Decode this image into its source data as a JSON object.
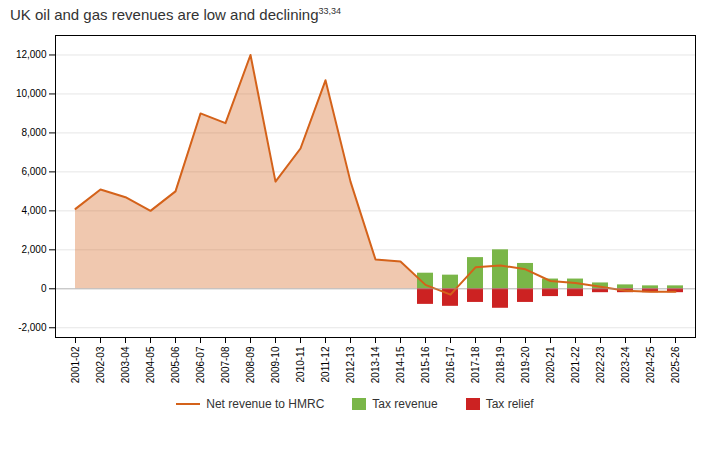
{
  "chart_data": {
    "type": "line",
    "title": "UK oil and gas revenues are low and declining",
    "title_superscript": "33,34",
    "categories": [
      "2001-02",
      "2002-03",
      "2003-04",
      "2004-05",
      "2005-06",
      "2006-07",
      "2007-08",
      "2008-09",
      "2009-10",
      "2010-11",
      "2011-12",
      "2012-13",
      "2013-14",
      "2014-15",
      "2015-16",
      "2016-17",
      "2017-18",
      "2018-19",
      "2019-20",
      "2020-21",
      "2021-22",
      "2022-23",
      "2023-24",
      "2024-25",
      "2025-26"
    ],
    "series": [
      {
        "name": "Net revenue to HMRC",
        "type": "line",
        "color": "#d4621a",
        "values": [
          4100,
          5100,
          4700,
          4000,
          5000,
          9000,
          8500,
          12000,
          5500,
          7200,
          10700,
          5500,
          1500,
          1400,
          200,
          -300,
          1100,
          1200,
          1000,
          400,
          300,
          100,
          -100,
          -150,
          -150
        ]
      },
      {
        "name": "Tax revenue",
        "type": "bar",
        "color": "#7ab648",
        "values": [
          null,
          null,
          null,
          null,
          null,
          null,
          null,
          null,
          null,
          null,
          null,
          null,
          null,
          null,
          800,
          700,
          1600,
          2000,
          1300,
          500,
          500,
          300,
          200,
          150,
          150
        ]
      },
      {
        "name": "Tax relief",
        "type": "bar",
        "color": "#cc2222",
        "values": [
          null,
          null,
          null,
          null,
          null,
          null,
          null,
          null,
          null,
          null,
          null,
          null,
          null,
          null,
          -800,
          -900,
          -700,
          -1000,
          -700,
          -400,
          -400,
          -200,
          -200,
          -200,
          -200
        ]
      }
    ],
    "ylim": [
      -2500,
      13000
    ],
    "yticks": [
      {
        "value": -2000,
        "label": "-2,000"
      },
      0,
      {
        "value": 2000,
        "label": "2,000"
      },
      {
        "value": 4000,
        "label": "4,000"
      },
      {
        "value": 6000,
        "label": "6,000"
      },
      {
        "value": 8000,
        "label": "8,000"
      },
      {
        "value": 10000,
        "label": "10,000"
      },
      {
        "value": 12000,
        "label": "12,000"
      }
    ],
    "grid": true,
    "legend": "bottom"
  }
}
